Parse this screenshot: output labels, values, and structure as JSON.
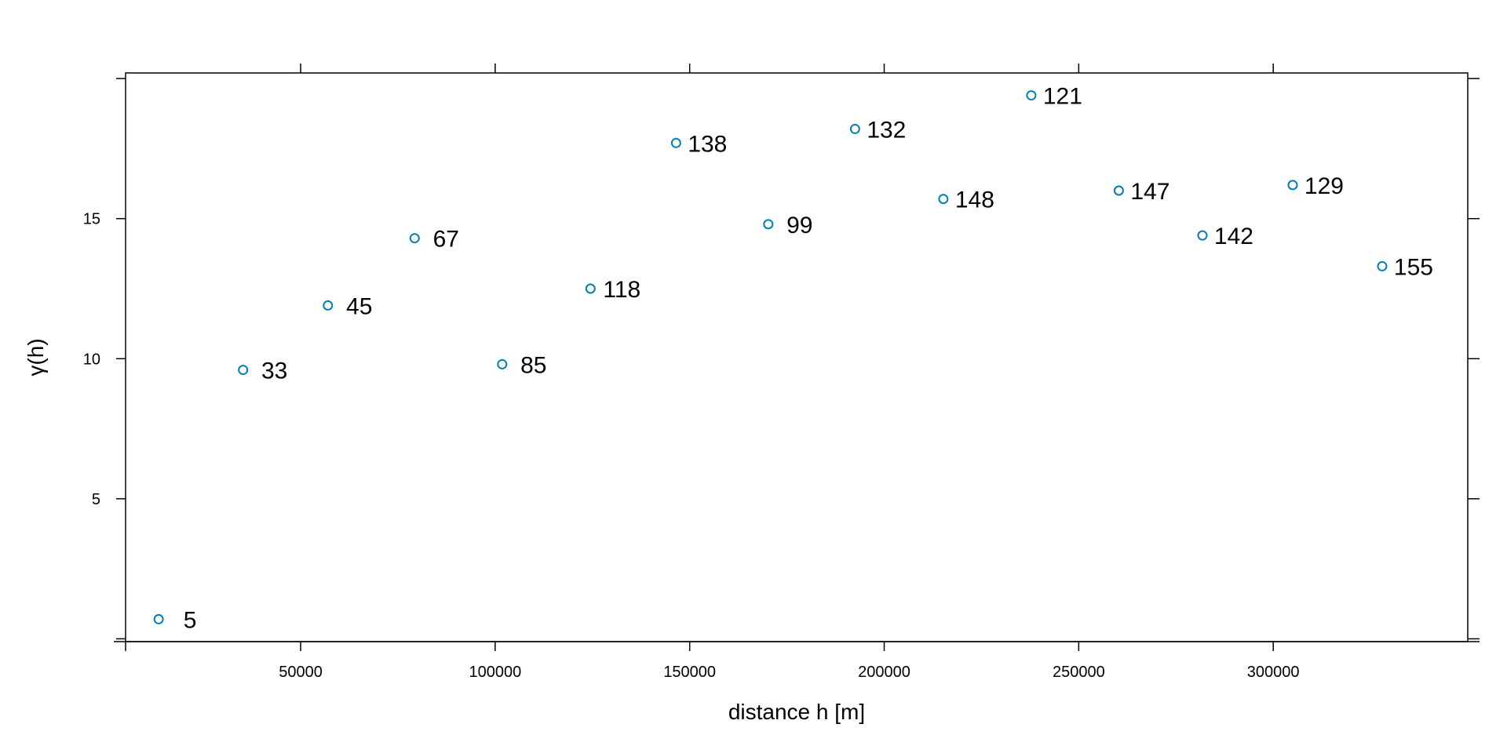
{
  "chart_data": {
    "type": "scatter",
    "title": "",
    "xlabel": "distance h [m]",
    "ylabel": "γ(h)",
    "xlim": [
      5000,
      350000
    ],
    "ylim": [
      -0.1,
      20.2
    ],
    "x_ticks": [
      50000,
      100000,
      150000,
      200000,
      250000,
      300000
    ],
    "y_ticks": [
      5,
      10,
      15
    ],
    "grid": false,
    "marker": "open-circle",
    "series": [
      {
        "points": [
          {
            "x": 13500,
            "y": 0.7,
            "label": "5"
          },
          {
            "x": 35200,
            "y": 9.6,
            "label": "33"
          },
          {
            "x": 57000,
            "y": 11.9,
            "label": "45"
          },
          {
            "x": 79300,
            "y": 14.3,
            "label": "67"
          },
          {
            "x": 101800,
            "y": 9.8,
            "label": "85"
          },
          {
            "x": 124500,
            "y": 12.5,
            "label": "118"
          },
          {
            "x": 146500,
            "y": 17.7,
            "label": "138"
          },
          {
            "x": 170200,
            "y": 14.8,
            "label": "99"
          },
          {
            "x": 192500,
            "y": 18.2,
            "label": "132"
          },
          {
            "x": 215200,
            "y": 15.7,
            "label": "148"
          },
          {
            "x": 237800,
            "y": 19.4,
            "label": "121"
          },
          {
            "x": 260300,
            "y": 16.0,
            "label": "147"
          },
          {
            "x": 281800,
            "y": 14.4,
            "label": "142"
          },
          {
            "x": 305000,
            "y": 16.2,
            "label": "129"
          },
          {
            "x": 328000,
            "y": 13.3,
            "label": "155"
          }
        ]
      }
    ]
  },
  "colors": {
    "marker": "#0080B0",
    "axis": "#000000",
    "background": "#ffffff"
  }
}
